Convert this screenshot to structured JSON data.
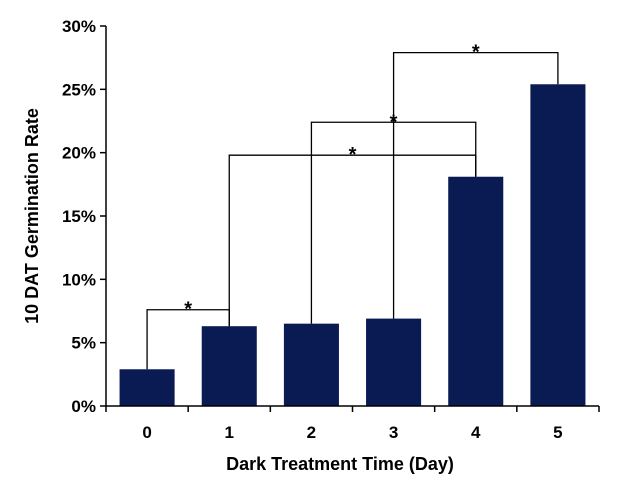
{
  "chart_data": {
    "type": "bar",
    "title": "",
    "xlabel": "Dark Treatment Time (Day)",
    "ylabel": "10 DAT Germination Rate",
    "categories": [
      "0",
      "1",
      "2",
      "3",
      "4",
      "5"
    ],
    "values": [
      2.9,
      6.3,
      6.5,
      6.9,
      18.1,
      25.4
    ],
    "ylim": [
      0,
      30
    ],
    "yticks": [
      0,
      5,
      10,
      15,
      20,
      25,
      30
    ],
    "ytick_labels": [
      "0%",
      "5%",
      "10%",
      "15%",
      "20%",
      "25%",
      "30%"
    ],
    "grid": false,
    "legend": "none",
    "bar_color": "#0a1a52",
    "significance": [
      {
        "from": "0",
        "to": "1",
        "y": 7.6,
        "label": "*"
      },
      {
        "from": "1",
        "to": "4",
        "y": 19.8,
        "label": "*"
      },
      {
        "from": "2",
        "to": "4",
        "y": 22.4,
        "label": "*"
      },
      {
        "from": "3",
        "to": "5",
        "y": 27.9,
        "label": "*"
      }
    ]
  }
}
